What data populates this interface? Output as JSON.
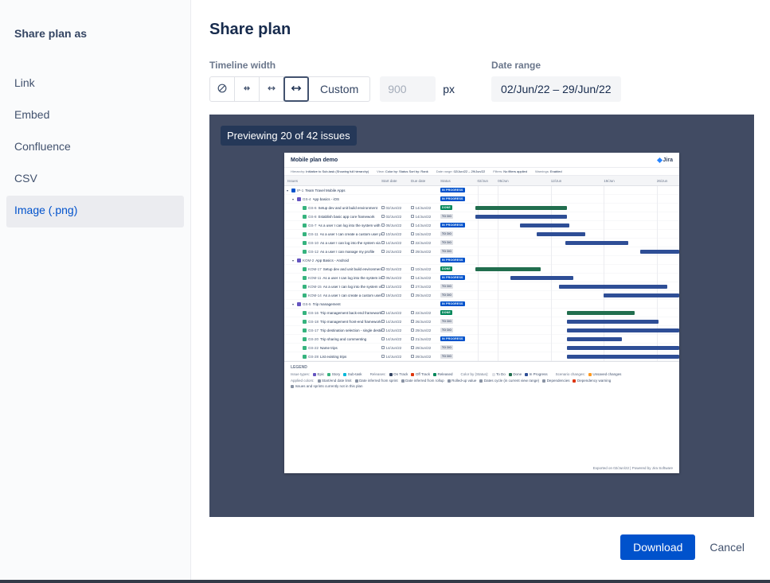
{
  "sidebar": {
    "title": "Share plan as",
    "items": [
      {
        "label": "Link",
        "selected": false
      },
      {
        "label": "Embed",
        "selected": false
      },
      {
        "label": "Confluence",
        "selected": false
      },
      {
        "label": "CSV",
        "selected": false
      },
      {
        "label": "Image (.png)",
        "selected": true
      }
    ]
  },
  "header": {
    "title": "Share plan"
  },
  "controls": {
    "timeline_width": {
      "label": "Timeline width",
      "presets": [
        "no-timeline",
        "narrow-width",
        "medium-width",
        "wide-width"
      ],
      "selected_preset": "wide-width",
      "custom_label": "Custom",
      "width_value": "900",
      "unit": "px"
    },
    "date_range": {
      "label": "Date range",
      "value": "02/Jun/22 – 29/Jun/22"
    }
  },
  "preview": {
    "badge": "Previewing 20 of 42 issues",
    "plan": {
      "title": "Mobile plan demo",
      "logo_text": "Jira",
      "meta": [
        {
          "label": "Hierarchy:",
          "value": "Initiative to Sub-task (Showing full hierarchy)"
        },
        {
          "label": "View:",
          "value": "Color by: Status  Sort by: Rank"
        },
        {
          "label": "Date range:",
          "value": "02/Jun/22 – 29/Jun/22"
        },
        {
          "label": "Filters:",
          "value": "No filters applied"
        },
        {
          "label": "Warnings:",
          "value": "Enabled"
        }
      ],
      "columns": {
        "issues": "Issues",
        "start": "Start date",
        "due": "Due date",
        "status": "Status"
      },
      "ticks": [
        {
          "label": "02/Jun",
          "pos": 1
        },
        {
          "label": "05/Jun",
          "pos": 11
        },
        {
          "label": "12/Jun",
          "pos": 37
        },
        {
          "label": "19/Jun",
          "pos": 63
        },
        {
          "label": "26/Jun",
          "pos": 89
        }
      ],
      "rows": [
        {
          "indent": 0,
          "chevron": true,
          "type": "initiative",
          "key": "IP-1",
          "summary": "Team Travel Mobile Apps",
          "start": "",
          "due": "",
          "status": "IN PROGRESS",
          "bar": null
        },
        {
          "indent": 1,
          "chevron": true,
          "type": "epic",
          "key": "GS-4",
          "summary": "App basics - iOS",
          "start": "",
          "due": "",
          "status": "IN PROGRESS",
          "bar": null
        },
        {
          "indent": 2,
          "chevron": false,
          "type": "story",
          "key": "GS-6",
          "summary": "Setup dev and unit build environment",
          "start": "02/Jun/22",
          "due": "14/Jun/22",
          "status": "DONE",
          "bar": {
            "start": 0,
            "width": 45,
            "color": "done"
          }
        },
        {
          "indent": 2,
          "chevron": false,
          "type": "story",
          "key": "GS-8",
          "summary": "Establish basic app core framework",
          "start": "02/Jun/22",
          "due": "14/Jun/22",
          "status": "TO DO",
          "bar": {
            "start": 0,
            "width": 45,
            "color": "todo"
          }
        },
        {
          "indent": 2,
          "chevron": false,
          "type": "story",
          "key": "GS-7",
          "summary": "As a user I can log into the system with email",
          "start": "08/Jun/22",
          "due": "14/Jun/22",
          "status": "IN PROGRESS",
          "bar": {
            "start": 22,
            "width": 24,
            "color": "inprogress"
          }
        },
        {
          "indent": 2,
          "chevron": false,
          "type": "story",
          "key": "GS-11",
          "summary": "As a user I can create a custom user profile",
          "start": "10/Jun/22",
          "due": "16/Jun/22",
          "status": "TO DO",
          "bar": {
            "start": 30,
            "width": 24,
            "color": "todo"
          }
        },
        {
          "indent": 2,
          "chevron": false,
          "type": "story",
          "key": "GS-10",
          "summary": "As a user I can log into the system via social",
          "start": "14/Jun/22",
          "due": "22/Jun/22",
          "status": "TO DO",
          "bar": {
            "start": 44,
            "width": 31,
            "color": "todo"
          }
        },
        {
          "indent": 2,
          "chevron": false,
          "type": "story",
          "key": "GS-12",
          "summary": "As a user I can manage my profile",
          "start": "24/Jun/22",
          "due": "29/Jun/22",
          "status": "TO DO",
          "bar": {
            "start": 81,
            "width": 19,
            "color": "todo"
          }
        },
        {
          "indent": 1,
          "chevron": true,
          "type": "epic",
          "key": "KOM-2",
          "summary": "App Basics - Android",
          "start": "",
          "due": "",
          "status": "IN PROGRESS",
          "bar": null
        },
        {
          "indent": 2,
          "chevron": false,
          "type": "story",
          "key": "KOM-17",
          "summary": "Setup dev and unit build environment",
          "start": "02/Jun/22",
          "due": "10/Jun/22",
          "status": "DONE",
          "bar": {
            "start": 0,
            "width": 32,
            "color": "done"
          }
        },
        {
          "indent": 2,
          "chevron": false,
          "type": "story",
          "key": "KOM-11",
          "summary": "As a user I can log into the system in one click",
          "start": "06/Jun/22",
          "due": "14/Jun/22",
          "status": "IN PROGRESS",
          "bar": {
            "start": 17,
            "width": 31,
            "color": "inprogress"
          }
        },
        {
          "indent": 2,
          "chevron": false,
          "type": "story",
          "key": "KOM-15",
          "summary": "As a user I can log into the system via social",
          "start": "13/Jun/22",
          "due": "27/Jun/22",
          "status": "TO DO",
          "bar": {
            "start": 41,
            "width": 53,
            "color": "todo"
          }
        },
        {
          "indent": 2,
          "chevron": false,
          "type": "story",
          "key": "KOM-14",
          "summary": "As a user I can create a custom user profile",
          "start": "19/Jun/22",
          "due": "29/Jun/22",
          "status": "TO DO",
          "bar": {
            "start": 63,
            "width": 37,
            "color": "todo"
          }
        },
        {
          "indent": 1,
          "chevron": true,
          "type": "epic",
          "key": "GS-5",
          "summary": "Trip management",
          "start": "",
          "due": "",
          "status": "IN PROGRESS",
          "bar": null
        },
        {
          "indent": 2,
          "chevron": false,
          "type": "story",
          "key": "GS-16",
          "summary": "Trip management back-end framework",
          "start": "14/Jun/22",
          "due": "22/Jun/22",
          "status": "DONE",
          "bar": {
            "start": 45,
            "width": 33,
            "color": "done"
          }
        },
        {
          "indent": 2,
          "chevron": false,
          "type": "story",
          "key": "GS-18",
          "summary": "Trip management front-end framework",
          "start": "14/Jun/22",
          "due": "26/Jun/22",
          "status": "TO DO",
          "bar": {
            "start": 45,
            "width": 45,
            "color": "todo"
          }
        },
        {
          "indent": 2,
          "chevron": false,
          "type": "story",
          "key": "GS-17",
          "summary": "Trip destination selection - single destination",
          "start": "14/Jun/22",
          "due": "29/Jun/22",
          "status": "TO DO",
          "bar": {
            "start": 45,
            "width": 55,
            "color": "todo"
          }
        },
        {
          "indent": 2,
          "chevron": false,
          "type": "story",
          "key": "GS-20",
          "summary": "Trip sharing and commenting",
          "start": "14/Jun/22",
          "due": "21/Jun/22",
          "status": "IN PROGRESS",
          "bar": {
            "start": 45,
            "width": 27,
            "color": "inprogress"
          }
        },
        {
          "indent": 2,
          "chevron": false,
          "type": "story",
          "key": "GS-22",
          "summary": "Name trips",
          "start": "14/Jun/22",
          "due": "29/Jun/22",
          "status": "TO DO",
          "bar": {
            "start": 45,
            "width": 55,
            "color": "todo"
          }
        },
        {
          "indent": 2,
          "chevron": false,
          "type": "story",
          "key": "GS-28",
          "summary": "List existing trips",
          "start": "14/Jun/22",
          "due": "29/Jun/22",
          "status": "TO DO",
          "bar": {
            "start": 45,
            "width": 55,
            "color": "todo"
          }
        }
      ],
      "legend": {
        "title": "LEGEND",
        "groups": [
          {
            "label": "Issue types:",
            "items": [
              {
                "label": "Epic",
                "color": "#6554C0"
              },
              {
                "label": "Story",
                "color": "#36B37E"
              },
              {
                "label": "Sub-task",
                "color": "#00B8D9"
              }
            ]
          },
          {
            "label": "Releases:",
            "items": [
              {
                "label": "On Track",
                "color": "#344563"
              },
              {
                "label": "Off Track",
                "color": "#DE350B"
              },
              {
                "label": "Released",
                "color": "#00875A"
              }
            ]
          },
          {
            "label": "Color by (Status):",
            "items": [
              {
                "label": "To Do",
                "color": "#DFE1E6"
              },
              {
                "label": "Done",
                "color": "#216E4E"
              },
              {
                "label": "In Progress",
                "color": "#2E4E96"
              }
            ]
          },
          {
            "label": "Scenario changes:",
            "items": [
              {
                "label": "Unsaved changes",
                "color": "#FF991F"
              }
            ]
          },
          {
            "label": "Applied colors:",
            "items": [
              {
                "label": "Start/end date limit",
                "color": "#8993A4"
              },
              {
                "label": "Date inferred from sprint",
                "color": "#8993A4"
              },
              {
                "label": "Date inferred from rollup",
                "color": "#8993A4"
              },
              {
                "label": "Rolled-up value",
                "color": "#8993A4"
              },
              {
                "label": "Dates cycle (in current view range)",
                "color": "#8993A4"
              },
              {
                "label": "Dependencies",
                "color": "#8993A4"
              },
              {
                "label": "Dependency warning",
                "color": "#DE350B"
              },
              {
                "label": "Issues and sprints currently not in this plan",
                "color": "#8993A4"
              }
            ]
          }
        ]
      },
      "footer_note": "Exported on 02/Jun/22 | Powered by Jira Software"
    }
  },
  "footer": {
    "download_label": "Download",
    "cancel_label": "Cancel"
  },
  "colors": {
    "accent": "#0052CC",
    "preview_background": "#414B63",
    "status_chips": {
      "IN PROGRESS": {
        "bg": "#0052CC",
        "fg": "#FFFFFF"
      },
      "DONE": {
        "bg": "#00875A",
        "fg": "#FFFFFF"
      },
      "TO DO": {
        "bg": "#DFE1E6",
        "fg": "#42526E"
      }
    },
    "bar_colors": {
      "done": "#216E4E",
      "todo": "#2E4E96",
      "inprogress": "#2E4E96"
    },
    "type_colors": {
      "initiative": "#0052CC",
      "epic": "#6554C0",
      "story": "#36B37E"
    }
  }
}
